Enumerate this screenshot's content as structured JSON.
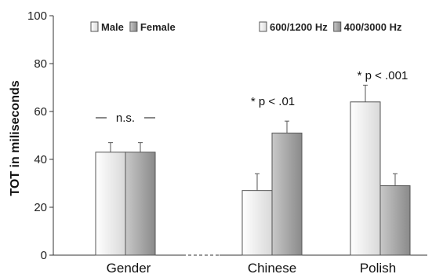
{
  "chart_data": {
    "type": "bar",
    "ylabel": "TOT in miliseconds",
    "ylim": [
      0,
      100
    ],
    "yticks": [
      "0",
      "20",
      "40",
      "60",
      "80",
      "100"
    ],
    "grid": false,
    "legend_groups": [
      {
        "placement": "top-left",
        "entries": [
          {
            "label": "Male",
            "style": "light"
          },
          {
            "label": "Female",
            "style": "dark"
          }
        ]
      },
      {
        "placement": "top-right",
        "entries": [
          {
            "label": "600/1200 Hz",
            "style": "light"
          },
          {
            "label": "400/3000 Hz",
            "style": "dark"
          }
        ]
      }
    ],
    "groups": [
      {
        "category": "Gender",
        "bars": [
          {
            "series": "Male",
            "value": 43,
            "error": 4,
            "style": "light"
          },
          {
            "series": "Female",
            "value": 43,
            "error": 4,
            "style": "dark"
          }
        ],
        "annotation": "n.s."
      },
      {
        "category": "Chinese",
        "bars": [
          {
            "series": "600/1200 Hz",
            "value": 27,
            "error": 7,
            "style": "light"
          },
          {
            "series": "400/3000 Hz",
            "value": 51,
            "error": 5,
            "style": "dark"
          }
        ],
        "annotation": "* p < .01"
      },
      {
        "category": "Polish",
        "bars": [
          {
            "series": "600/1200 Hz",
            "value": 64,
            "error": 7,
            "style": "light"
          },
          {
            "series": "400/3000 Hz",
            "value": 29,
            "error": 5,
            "style": "dark"
          }
        ],
        "annotation": "* p < .001"
      }
    ]
  },
  "colors": {
    "light_top": "#ffffff",
    "light_bottom": "#d9d9d9",
    "dark_top": "#c8c8c8",
    "dark_bottom": "#8a8a8a",
    "edge": "#555555",
    "axis": "#333333"
  }
}
